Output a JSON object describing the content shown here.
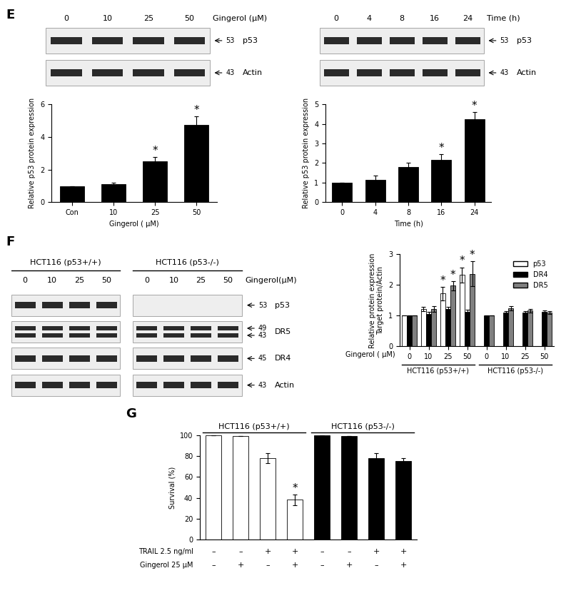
{
  "panel_labels": [
    "E",
    "F",
    "G"
  ],
  "blots": [
    {
      "header": "Gingerol (μM)",
      "groups": [
        {
          "lanes": [
            "0",
            "10",
            "25",
            "50"
          ]
        }
      ],
      "rows": [
        {
          "mw": [
            "53"
          ],
          "name": "p53"
        },
        {
          "mw": [
            "43"
          ],
          "name": "Actin"
        }
      ]
    },
    {
      "header": "Time (h)",
      "groups": [
        {
          "lanes": [
            "0",
            "4",
            "8",
            "16",
            "24"
          ]
        }
      ],
      "rows": [
        {
          "mw": [
            "53"
          ],
          "name": "p53"
        },
        {
          "mw": [
            "43"
          ],
          "name": "Actin"
        }
      ]
    },
    {
      "header": "Gingerol(μM)",
      "groups": [
        {
          "name": "HCT116 (p53+/+)",
          "lanes": [
            "0",
            "10",
            "25",
            "50"
          ]
        },
        {
          "name": "HCT116 (p53-/-)",
          "lanes": [
            "0",
            "10",
            "25",
            "50"
          ],
          "absent": [
            "p53"
          ]
        }
      ],
      "rows": [
        {
          "mw": [
            "53"
          ],
          "name": "p53"
        },
        {
          "mw": [
            "49",
            "43"
          ],
          "name": "DR5"
        },
        {
          "mw": [
            "45"
          ],
          "name": "DR4"
        },
        {
          "mw": [
            "43"
          ],
          "name": "Actin"
        }
      ]
    }
  ],
  "chart_data": [
    {
      "type": "bar",
      "x_label": "Gingerol ( μM)",
      "y_label": "Relative p53 protein expression",
      "categories": [
        "Con",
        "10",
        "25",
        "50"
      ],
      "values": [
        1,
        1.1,
        2.5,
        4.75
      ],
      "errors": [
        0,
        0.1,
        0.25,
        0.5
      ],
      "color": "#000000",
      "ylim": [
        0,
        6
      ],
      "yticks": [
        0,
        2,
        4,
        6
      ],
      "annotations": [
        {
          "index": 2,
          "text": "*"
        },
        {
          "index": 3,
          "text": "*"
        }
      ]
    },
    {
      "type": "bar",
      "x_label": "Time (h)",
      "y_label": "Relative p53 protein expression",
      "categories": [
        "0",
        "4",
        "8",
        "16",
        "24"
      ],
      "values": [
        1,
        1.15,
        1.8,
        2.15,
        4.25
      ],
      "errors": [
        0,
        0.2,
        0.2,
        0.3,
        0.35
      ],
      "color": "#000000",
      "ylim": [
        0,
        5
      ],
      "yticks": [
        0,
        1,
        2,
        3,
        4,
        5
      ],
      "annotations": [
        {
          "index": 3,
          "text": "*"
        },
        {
          "index": 4,
          "text": "*"
        }
      ]
    },
    {
      "type": "bar",
      "x_label": "Gingerol ( μM)",
      "y_label": "Relative protein expression\nTarget protein/Actin",
      "categories": [
        "0",
        "10",
        "25",
        "50",
        "0",
        "10",
        "25",
        "50"
      ],
      "groups": [
        {
          "name": "HCT116 (p53+/+)",
          "size": 4
        },
        {
          "name": "HCT116 (p53-/-)",
          "size": 4
        }
      ],
      "series": [
        {
          "name": "p53",
          "color": "#ffffff",
          "values": [
            1,
            1.22,
            1.72,
            2.33,
            null,
            null,
            null,
            null
          ],
          "errors": [
            0,
            0.08,
            0.22,
            0.25,
            null,
            null,
            null,
            null
          ]
        },
        {
          "name": "DR4",
          "color": "#000000",
          "values": [
            1,
            1.05,
            1.22,
            1.13,
            1,
            1.1,
            1.1,
            1.13
          ],
          "errors": [
            0,
            0.08,
            0.07,
            0.06,
            0,
            0.05,
            0.05,
            0.05
          ]
        },
        {
          "name": "DR5",
          "color": "#808080",
          "values": [
            1,
            1.22,
            1.98,
            2.37,
            1,
            1.25,
            1.17,
            1.1
          ],
          "errors": [
            0,
            0.1,
            0.15,
            0.4,
            0,
            0.07,
            0.06,
            0.05
          ]
        }
      ],
      "ylim": [
        0,
        3
      ],
      "yticks": [
        0,
        1,
        2,
        3
      ],
      "legend": "upper right",
      "annotations": [
        {
          "index": 2,
          "series": "p53",
          "text": "*"
        },
        {
          "index": 3,
          "series": "p53",
          "text": "*"
        },
        {
          "index": 2,
          "series": "DR5",
          "text": "*"
        },
        {
          "index": 3,
          "series": "DR5",
          "text": "*"
        }
      ]
    },
    {
      "type": "bar",
      "y_label": "Survival (%)",
      "categories": [
        null,
        null,
        null,
        null,
        null,
        null,
        null,
        null
      ],
      "values": [
        100,
        99,
        78,
        38,
        100,
        99,
        78,
        75
      ],
      "errors": [
        0,
        0,
        5,
        5,
        0,
        0,
        5,
        3
      ],
      "colors": [
        "#ffffff",
        "#ffffff",
        "#ffffff",
        "#ffffff",
        "#000000",
        "#000000",
        "#000000",
        "#000000"
      ],
      "groups": [
        {
          "name": "HCT116 (p53+/+)",
          "size": 4
        },
        {
          "name": "HCT116 (p53-/-)",
          "size": 4
        }
      ],
      "conditions": [
        {
          "label": "TRAIL 2.5 ng/ml",
          "values": [
            "–",
            "–",
            "+",
            "+",
            "–",
            "–",
            "+",
            "+"
          ]
        },
        {
          "label": "Gingerol 25 μM",
          "values": [
            "–",
            "+",
            "–",
            "+",
            "–",
            "+",
            "–",
            "+"
          ]
        }
      ],
      "ylim": [
        0,
        100
      ],
      "yticks": [
        0,
        20,
        40,
        60,
        80,
        100
      ],
      "annotations": [
        {
          "index": 3,
          "text": "*"
        }
      ]
    }
  ]
}
